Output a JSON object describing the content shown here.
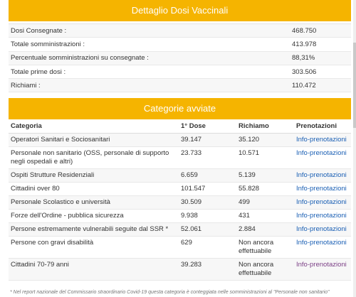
{
  "dosi": {
    "title": "Dettaglio Dosi Vaccinali",
    "rows": [
      {
        "label": "Dosi Consegnate :",
        "value": "468.750"
      },
      {
        "label": "Totale somministrazioni :",
        "value": "413.978"
      },
      {
        "label": "Percentuale somministrazioni su consegnate :",
        "value": "88,31%"
      },
      {
        "label": "Totale prime dosi :",
        "value": "303.506"
      },
      {
        "label": "Richiami :",
        "value": "110.472"
      }
    ]
  },
  "categorie": {
    "title": "Categorie avviate",
    "headers": {
      "categoria": "Categoria",
      "prima_dose": "1° Dose",
      "richiamo": "Richiamo",
      "prenotazioni": "Prenotazioni"
    },
    "rows": [
      {
        "categoria": "Operatori Sanitari e Sociosanitari",
        "prima_dose": "39.147",
        "richiamo": "35.120",
        "prenotazioni": "Info-prenotazioni"
      },
      {
        "categoria": "Personale non sanitario (OSS, personale di supporto negli ospedali e altri)",
        "prima_dose": "23.733",
        "richiamo": "10.571",
        "prenotazioni": "Info-prenotazioni"
      },
      {
        "categoria": "Ospiti Strutture Residenziali",
        "prima_dose": "6.659",
        "richiamo": "5.139",
        "prenotazioni": "Info-prenotazioni"
      },
      {
        "categoria": "Cittadini over 80",
        "prima_dose": "101.547",
        "richiamo": "55.828",
        "prenotazioni": "Info-prenotazioni"
      },
      {
        "categoria": "Personale Scolastico e università",
        "prima_dose": "30.509",
        "richiamo": "499",
        "prenotazioni": "Info-prenotazioni"
      },
      {
        "categoria": "Forze dell'Ordine - pubblica sicurezza",
        "prima_dose": "9.938",
        "richiamo": "431",
        "prenotazioni": "Info-prenotazioni"
      },
      {
        "categoria": "Persone estremamente vulnerabili seguite dal SSR *",
        "prima_dose": "52.061",
        "richiamo": "2.884",
        "prenotazioni": "Info-prenotazioni"
      },
      {
        "categoria": "Persone con gravi disabilità",
        "prima_dose": "629",
        "richiamo": "Non ancora effettuabile",
        "prenotazioni": "Info-prenotazioni"
      },
      {
        "categoria": "Cittadini 70-79 anni",
        "prima_dose": "39.283",
        "richiamo": "Non ancora effettuabile",
        "prenotazioni": "Info-prenotazioni"
      }
    ]
  },
  "footnote": "* Nel report nazionale del Commissario straordinario Covid-19 questa categoria è conteggiata nelle somministrazioni al \"Personale non sanitario\"",
  "colors": {
    "accent": "#f5b400",
    "link": "#1a5fb4",
    "link_visited": "#7b3f86"
  }
}
